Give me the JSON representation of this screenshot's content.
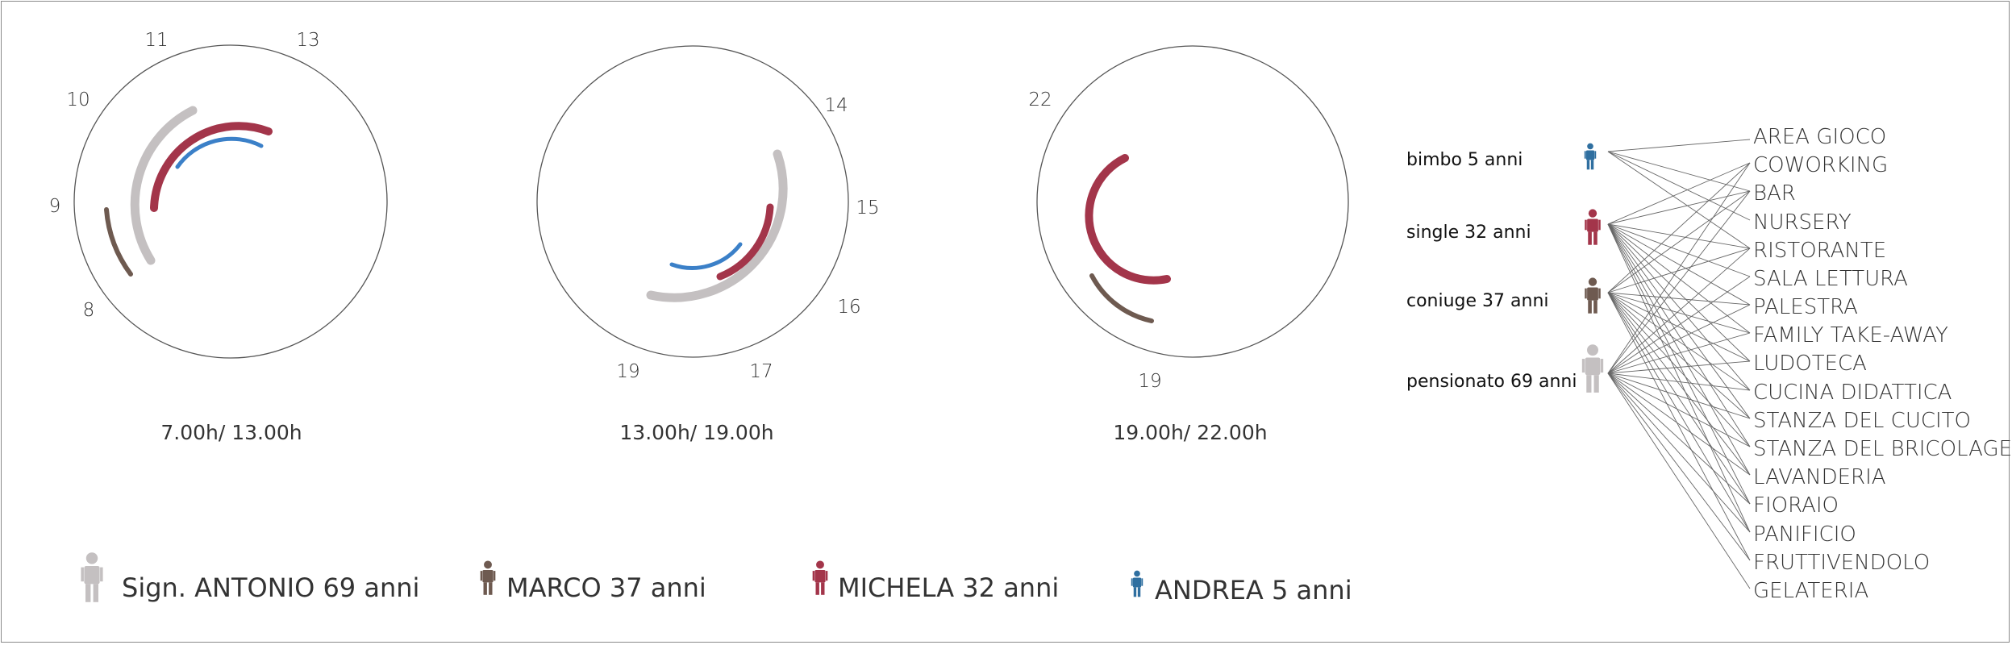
{
  "colors": {
    "antonio": "#c4c0c1",
    "marco": "#6e5a50",
    "michela": "#a3354a",
    "andrea_arc": "#3b80c8",
    "andrea_icon": "#2f6fa0",
    "circle": "#555555",
    "link": "#666666"
  },
  "clocks": [
    {
      "caption": "7.00h/ 13.00h",
      "hours": [
        "8",
        "9",
        "10",
        "11",
        "13"
      ]
    },
    {
      "caption": "13.00h/ 19.00h",
      "hours": [
        "14",
        "15",
        "16",
        "17",
        "19"
      ]
    },
    {
      "caption": "19.00h/ 22.00h",
      "hours": [
        "19",
        "22"
      ]
    }
  ],
  "profiles": [
    {
      "label": "bimbo 5 anni",
      "person": "andrea"
    },
    {
      "label": "single 32 anni",
      "person": "michela"
    },
    {
      "label": "coniuge 37 anni",
      "person": "marco"
    },
    {
      "label": "pensionato 69 anni",
      "person": "antonio"
    }
  ],
  "spaces": [
    "AREA GIOCO",
    "COWORKING",
    "BAR",
    "NURSERY",
    "RISTORANTE",
    "SALA LETTURA",
    "PALESTRA",
    "FAMILY TAKE-AWAY",
    "LUDOTECA",
    "CUCINA DIDATTICA",
    "STANZA DEL CUCITO",
    "STANZA DEL BRICOLAGE",
    "LAVANDERIA",
    "FIORAIO",
    "PANIFICIO",
    "FRUTTIVENDOLO",
    "GELATERIA"
  ],
  "links": [
    {
      "profile": 0,
      "spaces": [
        0,
        2,
        3,
        4
      ]
    },
    {
      "profile": 1,
      "spaces": [
        1,
        2,
        4,
        5,
        6,
        7,
        8,
        9,
        10,
        11,
        12,
        13,
        14
      ]
    },
    {
      "profile": 2,
      "spaces": [
        1,
        2,
        4,
        6,
        7,
        8,
        9,
        10,
        11,
        12,
        13,
        14,
        15
      ]
    },
    {
      "profile": 3,
      "spaces": [
        1,
        2,
        4,
        5,
        6,
        7,
        8,
        9,
        10,
        11,
        12,
        13,
        14,
        15,
        16
      ]
    }
  ],
  "legend": [
    {
      "person": "antonio",
      "label": "Sign. ANTONIO  69 anni"
    },
    {
      "person": "marco",
      "label": "MARCO   37 anni"
    },
    {
      "person": "michela",
      "label": "MICHELA  32 anni"
    },
    {
      "person": "andrea",
      "label": "ANDREA 5 anni"
    }
  ]
}
